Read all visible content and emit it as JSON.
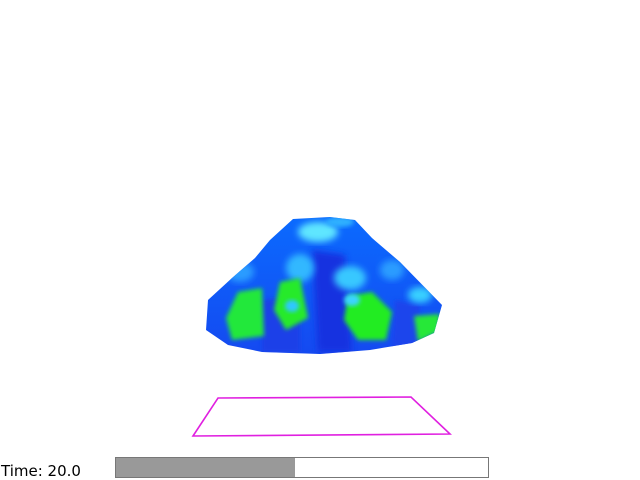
{
  "time_label": "Time: 20.0",
  "playback": {
    "progress_fraction": 0.48
  },
  "scene": {
    "background_color": "#ffffff",
    "plane_outline_color": "#e020e0",
    "colormap": [
      "#1a2ee0",
      "#0a6cff",
      "#2a9cff",
      "#38d8ff",
      "#20ee20"
    ]
  }
}
